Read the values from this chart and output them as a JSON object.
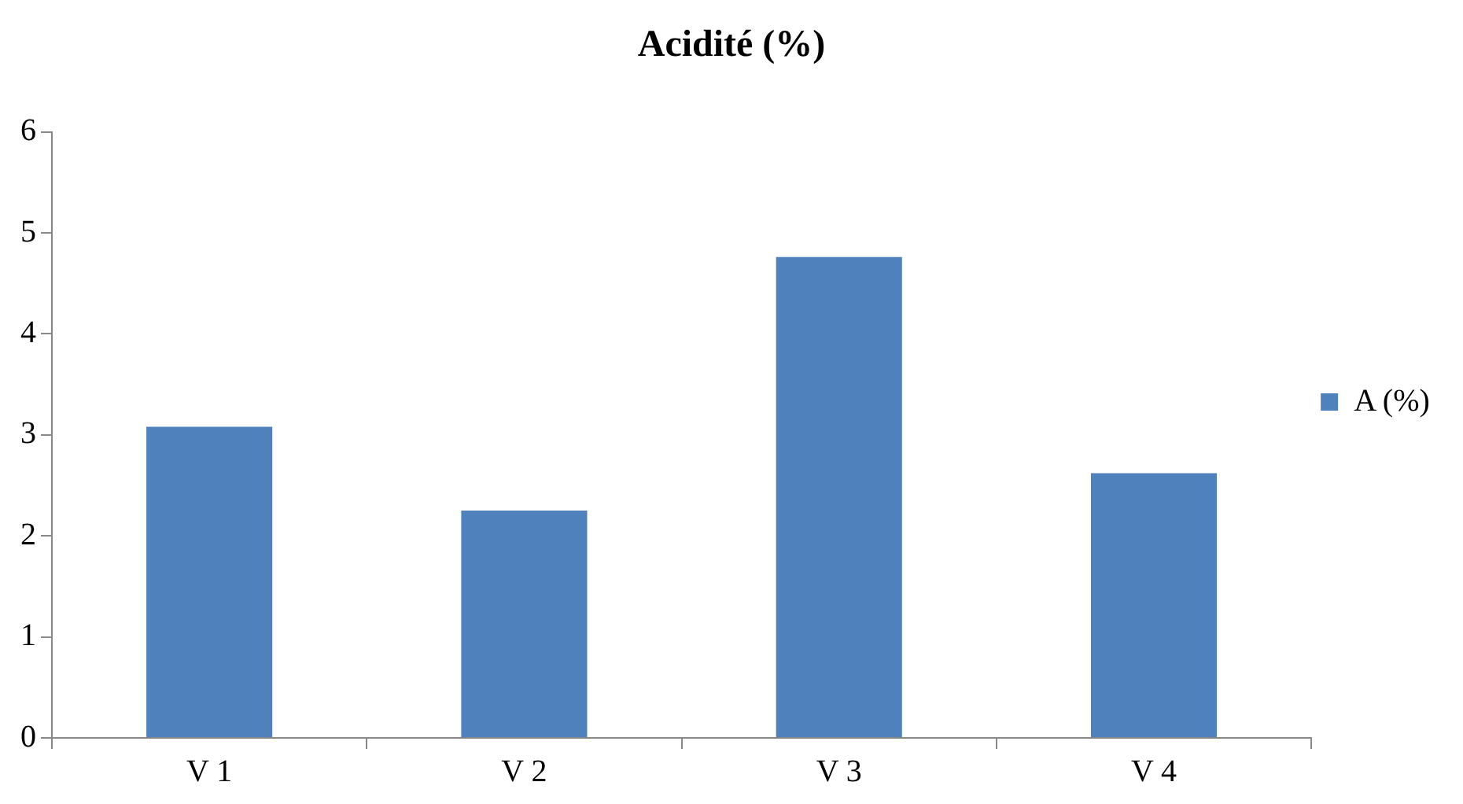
{
  "chart_data": {
    "type": "bar",
    "title": "Acidité (%)",
    "categories": [
      "V 1",
      "V 2",
      "V 3",
      "V 4"
    ],
    "series": [
      {
        "name": "A (%)",
        "color": "#4f81bd",
        "values": [
          3.08,
          2.25,
          4.76,
          2.62
        ]
      }
    ],
    "ylim": [
      0,
      6
    ],
    "yticks": [
      0,
      1,
      2,
      3,
      4,
      5,
      6
    ],
    "grid": false,
    "legend": "right"
  }
}
